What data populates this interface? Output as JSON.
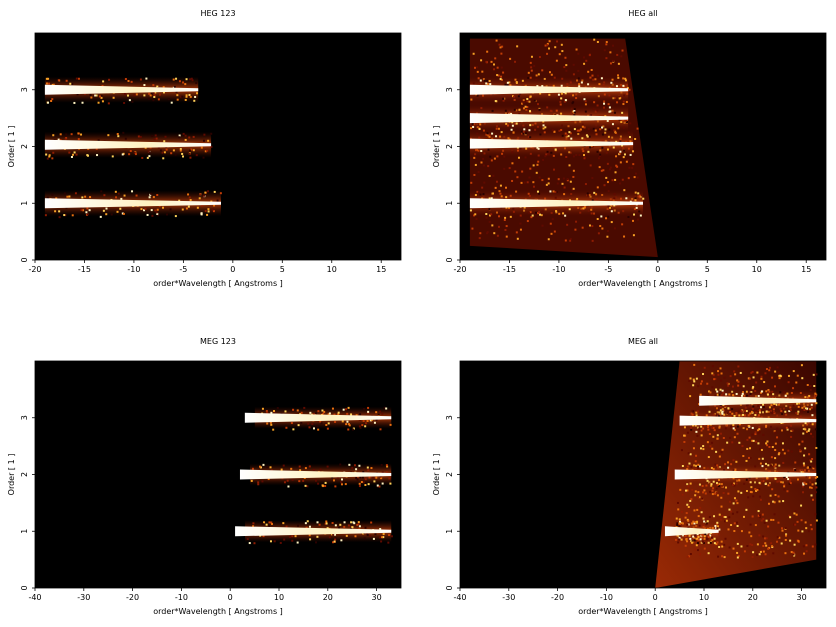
{
  "chart_data": [
    {
      "type": "heatmap",
      "title": "HEG 123",
      "xlabel": "order*Wavelength [ Angstroms ]",
      "ylabel": "Order [ 1 ]",
      "xlim": [
        -20,
        17
      ],
      "ylim": [
        0,
        4
      ],
      "xticks": [
        -20,
        -15,
        -10,
        -5,
        0,
        5,
        10,
        15
      ],
      "yticks": [
        0,
        1,
        2,
        3
      ],
      "bands": [
        {
          "order": 1,
          "x_start": -19,
          "x_end": -1.2,
          "y_center": 1.0
        },
        {
          "order": 2,
          "x_start": -19,
          "x_end": -2.2,
          "y_center": 2.03
        },
        {
          "order": 3,
          "x_start": -19,
          "x_end": -3.5,
          "y_center": 3.0
        }
      ]
    },
    {
      "type": "heatmap",
      "title": "HEG all",
      "xlabel": "order*Wavelength [ Angstroms ]",
      "ylabel": "Order [ 1 ]",
      "xlim": [
        -20,
        17
      ],
      "ylim": [
        0,
        4
      ],
      "xticks": [
        -20,
        -15,
        -10,
        -5,
        0,
        5,
        10,
        15
      ],
      "yticks": [
        0,
        1,
        2,
        3
      ],
      "bands": [
        {
          "order": 1,
          "x_start": -19,
          "x_end": -1.5,
          "y_center": 1.0
        },
        {
          "order": 2,
          "x_start": -19,
          "x_end": -2.5,
          "y_center": 2.05
        },
        {
          "order": 2.5,
          "x_start": -19,
          "x_end": -3,
          "y_center": 2.5
        },
        {
          "order": 3,
          "x_start": -19,
          "x_end": -3,
          "y_center": 3.0
        }
      ]
    },
    {
      "type": "heatmap",
      "title": "MEG 123",
      "xlabel": "order*Wavelength [ Angstroms ]",
      "ylabel": "Order [ 1 ]",
      "xlim": [
        -40,
        35
      ],
      "ylim": [
        0,
        4
      ],
      "xticks": [
        -40,
        -30,
        -20,
        -10,
        0,
        10,
        20,
        30
      ],
      "yticks": [
        0,
        1,
        2,
        3
      ],
      "bands": [
        {
          "order": 1,
          "x_start": 1,
          "x_end": 33,
          "y_center": 1.0
        },
        {
          "order": 2,
          "x_start": 2,
          "x_end": 33,
          "y_center": 2.0
        },
        {
          "order": 3,
          "x_start": 3,
          "x_end": 33,
          "y_center": 3.0
        }
      ]
    },
    {
      "type": "heatmap",
      "title": "MEG all",
      "xlabel": "order*Wavelength [ Angstroms ]",
      "ylabel": "Order [ 1 ]",
      "xlim": [
        -40,
        35
      ],
      "ylim": [
        0,
        4
      ],
      "xticks": [
        -40,
        -30,
        -20,
        -10,
        0,
        10,
        20,
        30
      ],
      "yticks": [
        0,
        1,
        2,
        3
      ],
      "bands": [
        {
          "order": 1,
          "x_start": 2,
          "x_end": 13,
          "y_center": 1.0
        },
        {
          "order": 2,
          "x_start": 4,
          "x_end": 33,
          "y_center": 2.0
        },
        {
          "order": 3,
          "x_start": 5,
          "x_end": 33,
          "y_center": 2.95
        },
        {
          "order": 3.3,
          "x_start": 9,
          "x_end": 33,
          "y_center": 3.3
        }
      ]
    }
  ]
}
